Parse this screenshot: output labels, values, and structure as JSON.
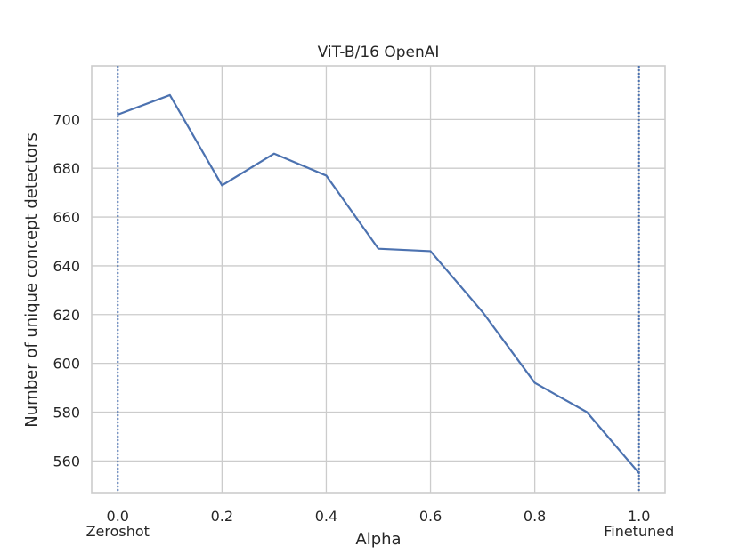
{
  "chart_data": {
    "type": "line",
    "title": "ViT-B/16 OpenAI",
    "xlabel": "Alpha",
    "ylabel": "Number of unique concept detectors",
    "xlim": [
      -0.05,
      1.05
    ],
    "ylim": [
      547,
      722
    ],
    "x_ticks": [
      "0.0",
      "0.2",
      "0.4",
      "0.6",
      "0.8",
      "1.0"
    ],
    "x_tick_values": [
      0.0,
      0.2,
      0.4,
      0.6,
      0.8,
      1.0
    ],
    "y_ticks": [
      "560",
      "580",
      "600",
      "620",
      "640",
      "660",
      "680",
      "700"
    ],
    "y_tick_values": [
      560,
      580,
      600,
      620,
      640,
      660,
      680,
      700
    ],
    "grid": true,
    "series": [
      {
        "x": [
          0.0,
          0.1,
          0.2,
          0.3,
          0.4,
          0.5,
          0.6,
          0.7,
          0.8,
          0.9,
          1.0
        ],
        "values": [
          702,
          710,
          673,
          686,
          677,
          647,
          646,
          621,
          592,
          580,
          555
        ],
        "color": "#4c72b0"
      }
    ],
    "vertical_lines": [
      {
        "x": 0.0,
        "label": "Zeroshot",
        "style": "dotted",
        "color": "#4c72b0"
      },
      {
        "x": 1.0,
        "label": "Finetuned",
        "style": "dotted",
        "color": "#4c72b0"
      }
    ]
  }
}
